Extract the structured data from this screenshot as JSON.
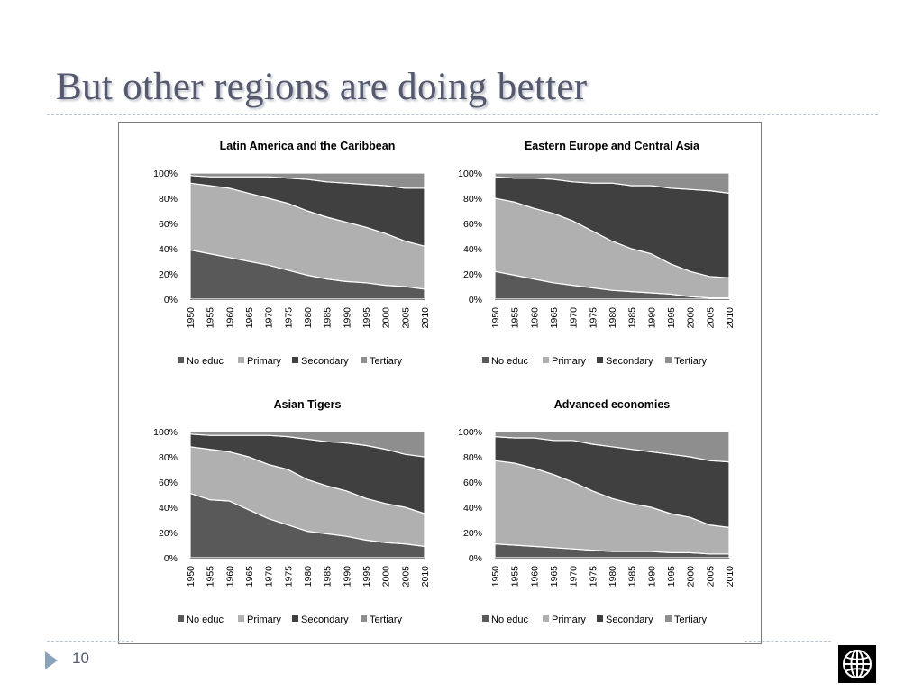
{
  "slide": {
    "title": "But other regions are doing better",
    "page_number": "10"
  },
  "colors": {
    "no_educ": "#595959",
    "primary": "#b0b0b0",
    "secondary": "#404040",
    "tertiary": "#8e8e8e"
  },
  "chart_data": [
    {
      "type": "area",
      "stacked": "percent",
      "title": "Latin America and the Caribbean",
      "x": [
        "1950",
        "1955",
        "1960",
        "1965",
        "1970",
        "1975",
        "1980",
        "1985",
        "1990",
        "1995",
        "2000",
        "2005",
        "2010"
      ],
      "ylim": [
        0,
        100
      ],
      "yticks": [
        "0%",
        "20%",
        "40%",
        "60%",
        "80%",
        "100%"
      ],
      "legend_position": "bottom",
      "series": [
        {
          "name": "No educ",
          "values": [
            39,
            36,
            33,
            30,
            27,
            23,
            19,
            16,
            14,
            13,
            11,
            10,
            8
          ]
        },
        {
          "name": "Primary",
          "values": [
            53,
            54,
            55,
            54,
            53,
            53,
            51,
            49,
            47,
            44,
            41,
            36,
            34
          ]
        },
        {
          "name": "Secondary",
          "values": [
            6,
            7,
            9,
            13,
            17,
            20,
            25,
            28,
            31,
            34,
            38,
            42,
            46
          ]
        },
        {
          "name": "Tertiary",
          "values": [
            2,
            3,
            3,
            3,
            3,
            4,
            5,
            7,
            8,
            9,
            10,
            12,
            12
          ]
        }
      ]
    },
    {
      "type": "area",
      "stacked": "percent",
      "title": "Eastern Europe and Central Asia",
      "x": [
        "1950",
        "1955",
        "1960",
        "1965",
        "1970",
        "1975",
        "1980",
        "1985",
        "1990",
        "1995",
        "2000",
        "2005",
        "2010"
      ],
      "ylim": [
        0,
        100
      ],
      "yticks": [
        "0%",
        "20%",
        "40%",
        "60%",
        "80%",
        "100%"
      ],
      "legend_position": "bottom",
      "series": [
        {
          "name": "No educ",
          "values": [
            22,
            19,
            16,
            13,
            11,
            9,
            7,
            6,
            5,
            4,
            2,
            1,
            1
          ]
        },
        {
          "name": "Primary",
          "values": [
            58,
            58,
            56,
            55,
            51,
            45,
            39,
            34,
            31,
            24,
            20,
            17,
            16
          ]
        },
        {
          "name": "Secondary",
          "values": [
            17,
            19,
            24,
            27,
            31,
            38,
            46,
            50,
            54,
            60,
            65,
            68,
            67
          ]
        },
        {
          "name": "Tertiary",
          "values": [
            3,
            4,
            4,
            5,
            7,
            8,
            8,
            10,
            10,
            12,
            13,
            14,
            16
          ]
        }
      ]
    },
    {
      "type": "area",
      "stacked": "percent",
      "title": "Asian Tigers",
      "x": [
        "1950",
        "1955",
        "1960",
        "1965",
        "1970",
        "1975",
        "1980",
        "1985",
        "1990",
        "1995",
        "2000",
        "2005",
        "2010"
      ],
      "ylim": [
        0,
        100
      ],
      "yticks": [
        "0%",
        "20%",
        "40%",
        "60%",
        "80%",
        "100%"
      ],
      "legend_position": "bottom",
      "series": [
        {
          "name": "No educ",
          "values": [
            51,
            46,
            45,
            38,
            31,
            26,
            21,
            19,
            17,
            14,
            12,
            11,
            9
          ]
        },
        {
          "name": "Primary",
          "values": [
            37,
            40,
            39,
            42,
            43,
            44,
            41,
            38,
            36,
            33,
            31,
            29,
            26
          ]
        },
        {
          "name": "Secondary",
          "values": [
            10,
            11,
            13,
            17,
            23,
            26,
            32,
            35,
            38,
            42,
            43,
            42,
            45
          ]
        },
        {
          "name": "Tertiary",
          "values": [
            2,
            3,
            3,
            3,
            3,
            4,
            6,
            8,
            9,
            11,
            14,
            18,
            20
          ]
        }
      ]
    },
    {
      "type": "area",
      "stacked": "percent",
      "title": "Advanced economies",
      "x": [
        "1950",
        "1955",
        "1960",
        "1965",
        "1970",
        "1975",
        "1980",
        "1985",
        "1990",
        "1995",
        "2000",
        "2005",
        "2010"
      ],
      "ylim": [
        0,
        100
      ],
      "yticks": [
        "0%",
        "20%",
        "40%",
        "60%",
        "80%",
        "100%"
      ],
      "legend_position": "bottom",
      "series": [
        {
          "name": "No educ",
          "values": [
            11,
            10,
            9,
            8,
            7,
            6,
            5,
            5,
            5,
            4,
            4,
            3,
            3
          ]
        },
        {
          "name": "Primary",
          "values": [
            66,
            65,
            62,
            58,
            53,
            47,
            42,
            38,
            35,
            31,
            28,
            23,
            21
          ]
        },
        {
          "name": "Secondary",
          "values": [
            19,
            20,
            24,
            27,
            33,
            37,
            41,
            43,
            44,
            47,
            48,
            51,
            52
          ]
        },
        {
          "name": "Tertiary",
          "values": [
            4,
            5,
            5,
            7,
            7,
            10,
            12,
            14,
            16,
            18,
            20,
            23,
            24
          ]
        }
      ]
    }
  ]
}
